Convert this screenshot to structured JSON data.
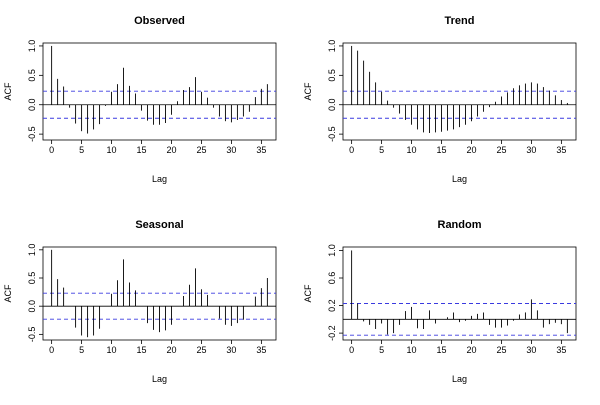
{
  "chart_data": [
    {
      "type": "bar",
      "title": "Observed",
      "xlabel": "Lag",
      "ylabel": "ACF",
      "xlim": [
        0,
        36
      ],
      "ylim": [
        -0.6,
        1.05
      ],
      "xticks": [
        0,
        5,
        10,
        15,
        20,
        25,
        30,
        35
      ],
      "yticks": [
        1.0,
        0.5,
        0.0,
        -0.5
      ],
      "ytick_labels": [
        "1.0",
        "0.5",
        "0.0",
        "-0.5"
      ],
      "conf_bound": 0.23,
      "lags": [
        0,
        1,
        2,
        3,
        4,
        5,
        6,
        7,
        8,
        9,
        10,
        11,
        12,
        13,
        14,
        15,
        16,
        17,
        18,
        19,
        20,
        21,
        22,
        23,
        24,
        25,
        26,
        27,
        28,
        29,
        30,
        31,
        32,
        33,
        34,
        35,
        36
      ],
      "values": [
        1.0,
        0.44,
        0.31,
        -0.05,
        -0.32,
        -0.45,
        -0.49,
        -0.42,
        -0.33,
        -0.02,
        0.22,
        0.35,
        0.63,
        0.32,
        0.19,
        -0.1,
        -0.27,
        -0.34,
        -0.34,
        -0.31,
        -0.17,
        0.06,
        0.25,
        0.3,
        0.47,
        0.22,
        0.12,
        -0.05,
        -0.2,
        -0.28,
        -0.3,
        -0.26,
        -0.2,
        -0.12,
        0.13,
        0.27,
        0.35
      ]
    },
    {
      "type": "bar",
      "title": "Trend",
      "xlabel": "Lag",
      "ylabel": "ACF",
      "xlim": [
        0,
        36
      ],
      "ylim": [
        -0.6,
        1.05
      ],
      "xticks": [
        0,
        5,
        10,
        15,
        20,
        25,
        30,
        35
      ],
      "yticks": [
        1.0,
        0.5,
        0.0,
        -0.5
      ],
      "ytick_labels": [
        "1.0",
        "0.5",
        "0.0",
        "-0.5"
      ],
      "conf_bound": 0.23,
      "lags": [
        0,
        1,
        2,
        3,
        4,
        5,
        6,
        7,
        8,
        9,
        10,
        11,
        12,
        13,
        14,
        15,
        16,
        17,
        18,
        19,
        20,
        21,
        22,
        23,
        24,
        25,
        26,
        27,
        28,
        29,
        30,
        31,
        32,
        33,
        34,
        35,
        36
      ],
      "values": [
        1.0,
        0.92,
        0.75,
        0.56,
        0.38,
        0.22,
        0.07,
        -0.05,
        -0.15,
        -0.26,
        -0.34,
        -0.42,
        -0.47,
        -0.48,
        -0.47,
        -0.46,
        -0.44,
        -0.42,
        -0.38,
        -0.34,
        -0.28,
        -0.2,
        -0.12,
        -0.04,
        0.05,
        0.14,
        0.21,
        0.28,
        0.33,
        0.36,
        0.38,
        0.36,
        0.3,
        0.24,
        0.16,
        0.08,
        0.03
      ]
    },
    {
      "type": "bar",
      "title": "Seasonal",
      "xlabel": "Lag",
      "ylabel": "ACF",
      "xlim": [
        0,
        36
      ],
      "ylim": [
        -0.6,
        1.05
      ],
      "xticks": [
        0,
        5,
        10,
        15,
        20,
        25,
        30,
        35
      ],
      "yticks": [
        1.0,
        0.5,
        0.0,
        -0.5
      ],
      "ytick_labels": [
        "1.0",
        "0.5",
        "0.0",
        "-0.5"
      ],
      "conf_bound": 0.23,
      "lags": [
        0,
        1,
        2,
        3,
        4,
        5,
        6,
        7,
        8,
        9,
        10,
        11,
        12,
        13,
        14,
        15,
        16,
        17,
        18,
        19,
        20,
        21,
        22,
        23,
        24,
        25,
        26,
        27,
        28,
        29,
        30,
        31,
        32,
        33,
        34,
        35,
        36
      ],
      "values": [
        1.0,
        0.48,
        0.33,
        0.0,
        -0.38,
        -0.52,
        -0.55,
        -0.52,
        -0.4,
        0.0,
        0.22,
        0.46,
        0.83,
        0.42,
        0.28,
        0.0,
        -0.3,
        -0.42,
        -0.46,
        -0.43,
        -0.33,
        0.0,
        0.18,
        0.38,
        0.67,
        0.3,
        0.2,
        0.0,
        -0.22,
        -0.33,
        -0.35,
        -0.3,
        -0.24,
        0.0,
        0.17,
        0.32,
        0.5
      ]
    },
    {
      "type": "bar",
      "title": "Random",
      "xlabel": "Lag",
      "ylabel": "ACF",
      "xlim": [
        0,
        36
      ],
      "ylim": [
        -0.3,
        1.05
      ],
      "xticks": [
        0,
        5,
        10,
        15,
        20,
        25,
        30,
        35
      ],
      "yticks": [
        1.0,
        0.6,
        0.2,
        -0.2
      ],
      "ytick_labels": [
        "1.0",
        "0.6",
        "0.2",
        "-0.2"
      ],
      "conf_bound": 0.23,
      "lags": [
        0,
        1,
        2,
        3,
        4,
        5,
        6,
        7,
        8,
        9,
        10,
        11,
        12,
        13,
        14,
        15,
        16,
        17,
        18,
        19,
        20,
        21,
        22,
        23,
        24,
        25,
        26,
        27,
        28,
        29,
        30,
        31,
        32,
        33,
        34,
        35,
        36
      ],
      "values": [
        1.0,
        0.23,
        -0.03,
        -0.08,
        -0.14,
        -0.06,
        -0.22,
        -0.2,
        -0.08,
        0.12,
        0.18,
        -0.13,
        -0.14,
        0.13,
        -0.06,
        0.0,
        0.03,
        0.1,
        -0.04,
        -0.02,
        0.05,
        0.08,
        0.1,
        -0.08,
        -0.12,
        -0.12,
        -0.09,
        -0.02,
        0.07,
        0.1,
        0.29,
        0.13,
        -0.12,
        -0.07,
        -0.05,
        -0.07,
        -0.2
      ]
    }
  ]
}
